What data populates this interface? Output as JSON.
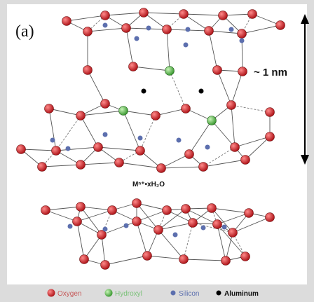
{
  "panel_label": "(a)",
  "scale_label": "~ 1 nm",
  "interlayer_label": "Mⁿ⁺•xH₂O",
  "legend": [
    {
      "label": "Oxygen"
    },
    {
      "label": "Hydroxyl"
    },
    {
      "label": "Silicon"
    },
    {
      "label": "Aluminum"
    }
  ]
}
